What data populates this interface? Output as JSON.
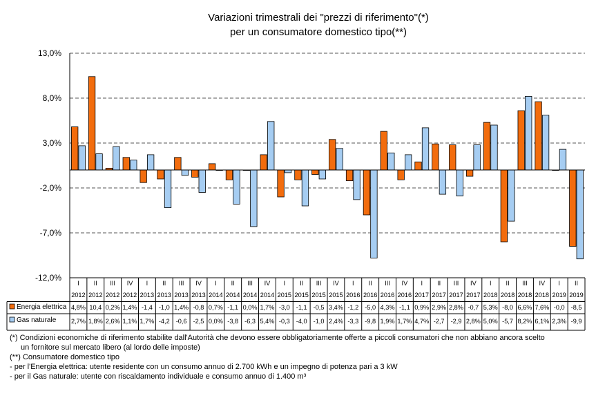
{
  "chart_data": {
    "type": "bar",
    "title_lines": [
      "Variazioni trimestrali dei \"prezzi di riferimento\"(*)",
      "per un consumatore domestico tipo(**)"
    ],
    "quarters": [
      "I",
      "II",
      "III",
      "IV",
      "I",
      "II",
      "III",
      "IV",
      "I",
      "II",
      "III",
      "IV",
      "I",
      "II",
      "III",
      "IV",
      "I",
      "II",
      "III",
      "IV",
      "I",
      "II",
      "III",
      "IV",
      "I",
      "II",
      "III",
      "IV",
      "I",
      "II"
    ],
    "years": [
      "2012",
      "2012",
      "2012",
      "2012",
      "2013",
      "2013",
      "2013",
      "2013",
      "2014",
      "2014",
      "2014",
      "2014",
      "2015",
      "2015",
      "2015",
      "2015",
      "2016",
      "2016",
      "2016",
      "2016",
      "2017",
      "2017",
      "2017",
      "2017",
      "2018",
      "2018",
      "2018",
      "2018",
      "2019",
      "2019"
    ],
    "series": [
      {
        "name": "Energia elettrica",
        "color": "#f26c0d",
        "values": [
          4.8,
          10.4,
          0.2,
          1.4,
          -1.4,
          -1.0,
          1.4,
          -0.8,
          0.7,
          -1.1,
          0.0,
          1.7,
          -3.0,
          -1.1,
          -0.5,
          3.4,
          -1.2,
          -5.0,
          4.3,
          -1.1,
          0.9,
          2.9,
          2.8,
          -0.7,
          5.3,
          -8.0,
          6.6,
          7.6,
          -0.0,
          -8.5
        ],
        "labels": [
          "4,8%",
          "10,4",
          "0,2%",
          "1,4%",
          "-1,4",
          "-1,0",
          "1,4%",
          "-0,8",
          "0,7%",
          "-1,1",
          "0,0%",
          "1,7%",
          "-3,0",
          "-1,1",
          "-0,5",
          "3,4%",
          "-1,2",
          "-5,0",
          "4,3%",
          "-1,1",
          "0,9%",
          "2,9%",
          "2,8%",
          "-0,7",
          "5,3%",
          "-8,0",
          "6,6%",
          "7,6%",
          "-0,0",
          "-8,5"
        ]
      },
      {
        "name": "Gas naturale",
        "color": "#a6cdf2",
        "values": [
          2.7,
          1.8,
          2.6,
          1.1,
          1.7,
          -4.2,
          -0.6,
          -2.5,
          0.0,
          -3.8,
          -6.3,
          5.4,
          -0.3,
          -4.0,
          -1.0,
          2.4,
          -3.3,
          -9.8,
          1.9,
          1.7,
          4.7,
          -2.7,
          -2.9,
          2.8,
          5.0,
          -5.7,
          8.2,
          6.1,
          2.3,
          -9.9
        ],
        "labels": [
          "2,7%",
          "1,8%",
          "2,6%",
          "1,1%",
          "1,7%",
          "-4,2",
          "-0,6",
          "-2,5",
          "0,0%",
          "-3,8",
          "-6,3",
          "5,4%",
          "-0,3",
          "-4,0",
          "-1,0",
          "2,4%",
          "-3,3",
          "-9,8",
          "1,9%",
          "1,7%",
          "4,7%",
          "-2,7",
          "-2,9",
          "2,8%",
          "5,0%",
          "-5,7",
          "8,2%",
          "6,1%",
          "2,3%",
          "-9,9"
        ]
      }
    ],
    "ylim": [
      -12,
      13
    ],
    "yticks": [
      13,
      8,
      3,
      -2,
      -7,
      -12
    ],
    "ytick_labels": [
      "13,0%",
      "8,0%",
      "3,0%",
      "-2,0%",
      "-7,0%",
      "-12,0%"
    ],
    "grid": true,
    "legend": "data-table"
  },
  "notes": [
    "(*) Condizioni economiche di riferimento stabilite dall'Autorità che devono essere obbligatoriamente offerte a piccoli consumatori che non abbiano ancora scelto",
    "un fornitore sul mercato libero (al lordo delle imposte)",
    "(**) Consumatore domestico tipo",
    "- per l'Energia elettrica: utente residente con un consumo annuo di 2.700 kWh e un impegno di potenza pari a 3 kW",
    "- per il Gas naturale: utente con riscaldamento individuale e consumo annuo di 1.400 m³"
  ]
}
